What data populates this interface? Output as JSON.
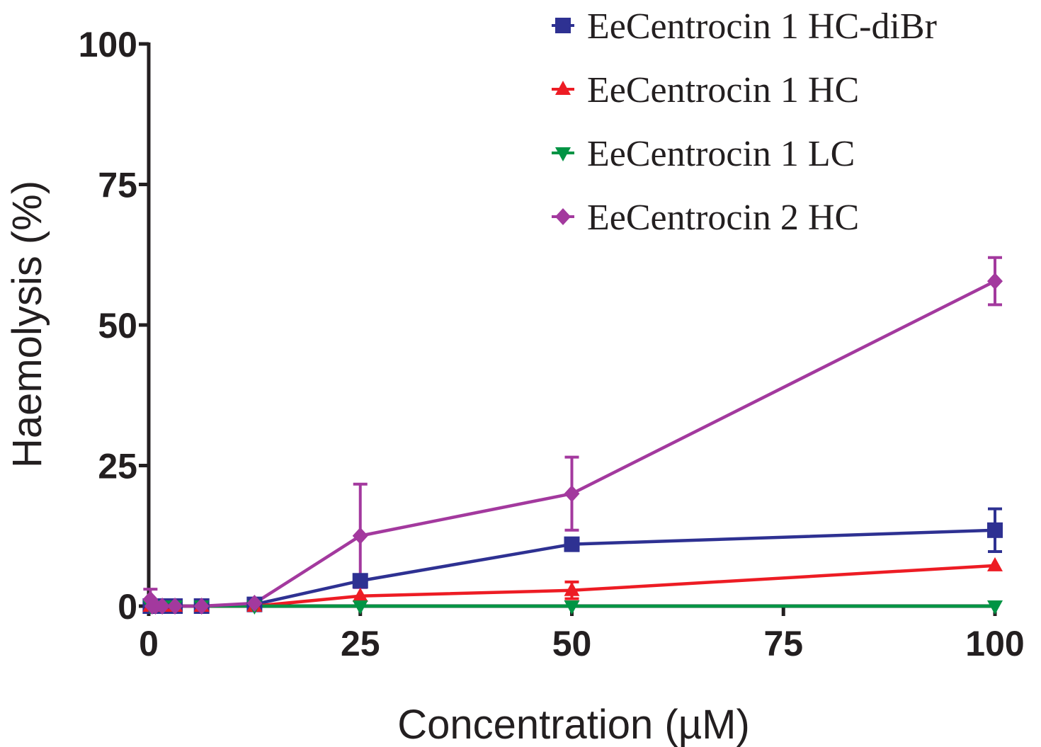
{
  "chart_data": {
    "type": "line",
    "xlabel": "Concentration (µM)",
    "ylabel": "Haemolysis (%)",
    "xlim": [
      0,
      100
    ],
    "ylim": [
      0,
      100
    ],
    "xticks": [
      0,
      25,
      50,
      75,
      100
    ],
    "yticks": [
      0,
      25,
      50,
      75,
      100
    ],
    "x_tick_labels": [
      "0",
      "25",
      "50",
      "75",
      "100"
    ],
    "y_tick_labels": [
      "0",
      "25",
      "50",
      "75",
      "100"
    ],
    "grid": false,
    "legend_position": "top-right",
    "series": [
      {
        "name": "EeCentrocin 1 HC-diBr",
        "color": "#2e3192",
        "marker": "square",
        "points": [
          {
            "x": 0.2,
            "y": 0
          },
          {
            "x": 0.4,
            "y": 0
          },
          {
            "x": 0.8,
            "y": 0
          },
          {
            "x": 1.6,
            "y": 0
          },
          {
            "x": 3.1,
            "y": 0
          },
          {
            "x": 6.25,
            "y": 0
          },
          {
            "x": 12.5,
            "y": 0.3
          },
          {
            "x": 25,
            "y": 4.5
          },
          {
            "x": 50,
            "y": 11
          },
          {
            "x": 100,
            "y": 13.5,
            "err": 3.8
          }
        ]
      },
      {
        "name": "EeCentrocin 1 HC",
        "color": "#ed1c24",
        "marker": "triangle-up",
        "points": [
          {
            "x": 0.2,
            "y": 0
          },
          {
            "x": 0.4,
            "y": 0
          },
          {
            "x": 0.8,
            "y": 0
          },
          {
            "x": 1.6,
            "y": 0
          },
          {
            "x": 3.1,
            "y": 0
          },
          {
            "x": 6.25,
            "y": 0
          },
          {
            "x": 12.5,
            "y": 0
          },
          {
            "x": 25,
            "y": 1.8
          },
          {
            "x": 50,
            "y": 2.8,
            "err": 1.5
          },
          {
            "x": 100,
            "y": 7.2
          }
        ]
      },
      {
        "name": "EeCentrocin 1 LC",
        "color": "#009444",
        "marker": "triangle-down",
        "points": [
          {
            "x": 0.2,
            "y": 0
          },
          {
            "x": 0.4,
            "y": 0
          },
          {
            "x": 0.8,
            "y": 0
          },
          {
            "x": 1.6,
            "y": 0
          },
          {
            "x": 3.1,
            "y": 0
          },
          {
            "x": 6.25,
            "y": 0
          },
          {
            "x": 12.5,
            "y": 0
          },
          {
            "x": 25,
            "y": 0
          },
          {
            "x": 50,
            "y": 0
          },
          {
            "x": 100,
            "y": 0
          }
        ]
      },
      {
        "name": "EeCentrocin 2 HC",
        "color": "#a3399e",
        "marker": "diamond",
        "points": [
          {
            "x": 0.2,
            "y": 1.2,
            "err": 1.8
          },
          {
            "x": 0.4,
            "y": 0
          },
          {
            "x": 0.8,
            "y": 0
          },
          {
            "x": 1.6,
            "y": 0
          },
          {
            "x": 3.1,
            "y": 0
          },
          {
            "x": 6.25,
            "y": 0
          },
          {
            "x": 12.5,
            "y": 0.5
          },
          {
            "x": 25,
            "y": 12.5,
            "err": 9.2
          },
          {
            "x": 50,
            "y": 20,
            "err": 6.5
          },
          {
            "x": 100,
            "y": 57.8,
            "err": 4.2
          }
        ]
      }
    ]
  }
}
